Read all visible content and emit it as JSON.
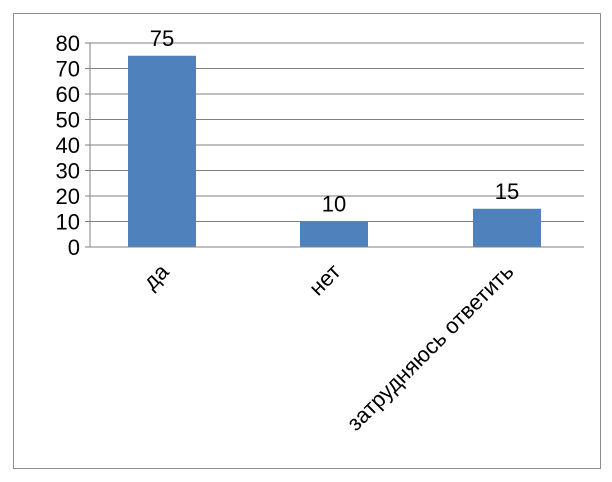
{
  "chart_data": {
    "type": "bar",
    "categories": [
      "да",
      "нет",
      "затрудняюсь ответить"
    ],
    "values": [
      75,
      10,
      15
    ],
    "data_labels": [
      "75",
      "10",
      "15"
    ],
    "ylim": [
      0,
      80
    ],
    "yticks": [
      "0",
      "10",
      "20",
      "30",
      "40",
      "50",
      "60",
      "70",
      "80"
    ],
    "grid": true,
    "legend": "none",
    "bar_color": "#4f81bd"
  }
}
